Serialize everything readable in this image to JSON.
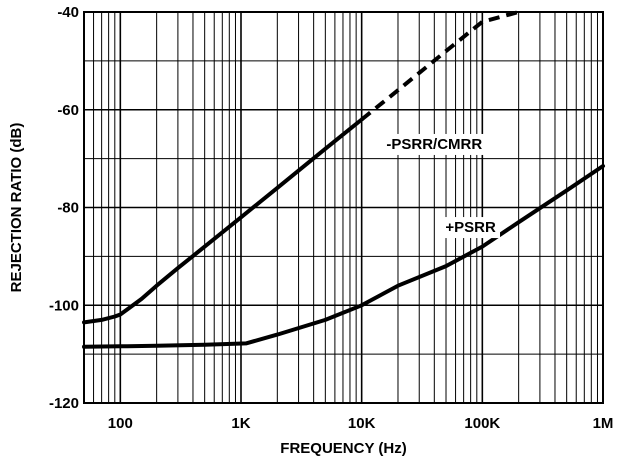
{
  "chart_data": {
    "type": "line",
    "xlabel": "FREQUENCY (Hz)",
    "ylabel": "REJECTION RATIO (dB)",
    "x_scale": "log",
    "xlim": [
      50,
      1000000
    ],
    "ylim": [
      -120,
      -40
    ],
    "grid": true,
    "x_ticks": [
      {
        "value": 100,
        "label": "100"
      },
      {
        "value": 1000,
        "label": "1K"
      },
      {
        "value": 10000,
        "label": "10K"
      },
      {
        "value": 100000,
        "label": "100K"
      },
      {
        "value": 1000000,
        "label": "1M"
      }
    ],
    "y_ticks": [
      {
        "value": -40,
        "label": "-40"
      },
      {
        "value": -60,
        "label": "-60"
      },
      {
        "value": -80,
        "label": "-80"
      },
      {
        "value": -100,
        "label": "-100"
      },
      {
        "value": -120,
        "label": "-120"
      }
    ],
    "series": [
      {
        "name": "-PSRR/CMRR",
        "style": "solid",
        "x": [
          50,
          70,
          90,
          100,
          150,
          200,
          300,
          500,
          1000,
          2000,
          5000,
          10000
        ],
        "y": [
          -103.5,
          -103,
          -102.3,
          -101.9,
          -98.7,
          -96,
          -92.4,
          -88,
          -82,
          -76,
          -68,
          -62
        ]
      },
      {
        "name": "-PSRR/CMRR",
        "style": "dashed",
        "x": [
          10000,
          20000,
          50000,
          100000,
          200000
        ],
        "y": [
          -62,
          -56,
          -48,
          -42,
          -36
        ]
      },
      {
        "name": "+PSRR",
        "style": "solid",
        "x": [
          50,
          100,
          200,
          500,
          1100,
          2000,
          5000,
          10000,
          20000,
          50000,
          100000,
          200000,
          500000,
          1000000
        ],
        "y": [
          -108.5,
          -108.4,
          -108.3,
          -108.1,
          -107.8,
          -106,
          -103,
          -100,
          -96,
          -92,
          -88,
          -83,
          -76.5,
          -71.5
        ]
      }
    ],
    "annotations": [
      {
        "text": "-PSRR/CMRR",
        "x": 40000,
        "y": -67
      },
      {
        "text": "+PSRR",
        "x": 80000,
        "y": -84
      }
    ]
  }
}
